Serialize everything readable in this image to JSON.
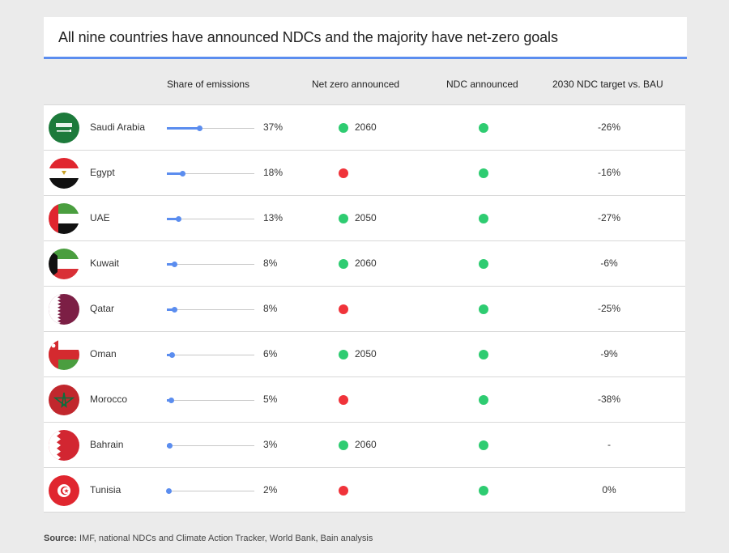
{
  "title": "All nine countries have announced NDCs and the majority have net-zero goals",
  "colors": {
    "accent": "#5b8def",
    "yes": "#2ecc71",
    "no": "#f0333a",
    "background": "#ebebeb"
  },
  "chart_data": {
    "type": "table",
    "columns": [
      "",
      "Share of emissions",
      "Net zero announced",
      "NDC announced",
      "2030 NDC target vs. BAU"
    ],
    "rows": [
      {
        "flag": "saudi-arabia-flag",
        "country": "Saudi Arabia",
        "share": 37,
        "share_label": "37%",
        "net_zero": true,
        "net_zero_year": "2060",
        "ndc": true,
        "target": "-26%"
      },
      {
        "flag": "egypt-flag",
        "country": "Egypt",
        "share": 18,
        "share_label": "18%",
        "net_zero": false,
        "net_zero_year": "",
        "ndc": true,
        "target": "-16%"
      },
      {
        "flag": "uae-flag",
        "country": "UAE",
        "share": 13,
        "share_label": "13%",
        "net_zero": true,
        "net_zero_year": "2050",
        "ndc": true,
        "target": "-27%"
      },
      {
        "flag": "kuwait-flag",
        "country": "Kuwait",
        "share": 8,
        "share_label": "8%",
        "net_zero": true,
        "net_zero_year": "2060",
        "ndc": true,
        "target": "-6%"
      },
      {
        "flag": "qatar-flag",
        "country": "Qatar",
        "share": 8,
        "share_label": "8%",
        "net_zero": false,
        "net_zero_year": "",
        "ndc": true,
        "target": "-25%"
      },
      {
        "flag": "oman-flag",
        "country": "Oman",
        "share": 6,
        "share_label": "6%",
        "net_zero": true,
        "net_zero_year": "2050",
        "ndc": true,
        "target": "-9%"
      },
      {
        "flag": "morocco-flag",
        "country": "Morocco",
        "share": 5,
        "share_label": "5%",
        "net_zero": false,
        "net_zero_year": "",
        "ndc": true,
        "target": "-38%"
      },
      {
        "flag": "bahrain-flag",
        "country": "Bahrain",
        "share": 3,
        "share_label": "3%",
        "net_zero": true,
        "net_zero_year": "2060",
        "ndc": true,
        "target": "-"
      },
      {
        "flag": "tunisia-flag",
        "country": "Tunisia",
        "share": 2,
        "share_label": "2%",
        "net_zero": false,
        "net_zero_year": "",
        "ndc": true,
        "target": "0%"
      }
    ],
    "share_scale_max": 100
  },
  "source": {
    "label": "Source:",
    "text": " IMF, national NDCs and Climate Action Tracker, World Bank, Bain analysis"
  }
}
